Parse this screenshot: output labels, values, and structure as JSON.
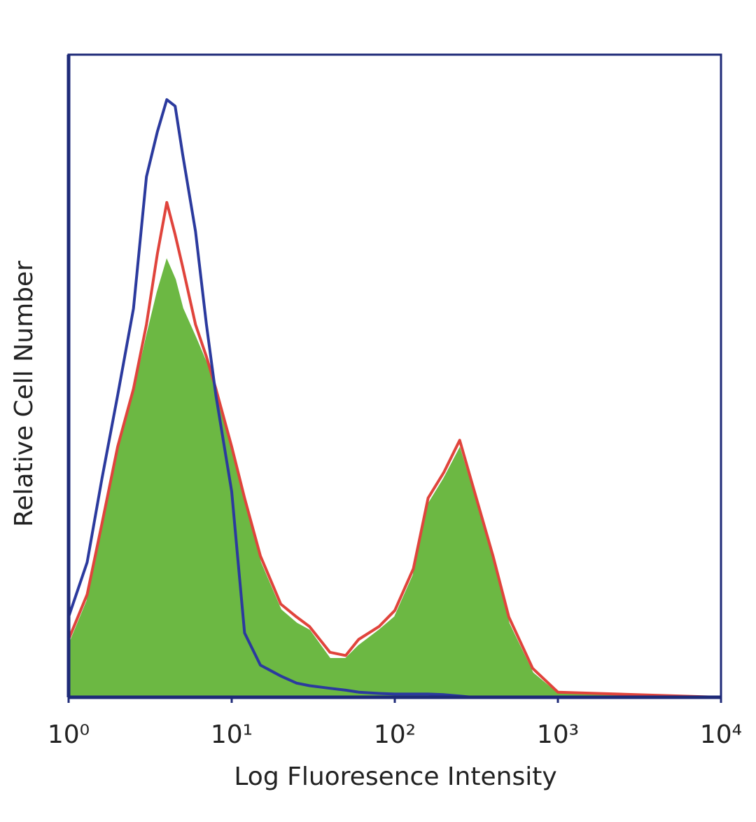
{
  "chart_data": {
    "type": "histogram-overlay",
    "xlabel": "Log Fluoresence Intensity",
    "ylabel": "Relative Cell Number",
    "xscale": "log",
    "xlim": [
      1,
      10000
    ],
    "ylim": [
      0,
      100
    ],
    "xticks": [
      {
        "value": 1,
        "label": "10⁰"
      },
      {
        "value": 10,
        "label": "10¹"
      },
      {
        "value": 100,
        "label": "10²"
      },
      {
        "value": 1000,
        "label": "10³"
      },
      {
        "value": 10000,
        "label": "10⁴"
      }
    ],
    "x": [
      1,
      1.3,
      1.6,
      2,
      2.5,
      3,
      3.5,
      4,
      4.5,
      5,
      6,
      7,
      8,
      10,
      12,
      15,
      20,
      25,
      30,
      40,
      50,
      60,
      80,
      100,
      130,
      160,
      200,
      250,
      300,
      400,
      500,
      700,
      1000,
      10000
    ],
    "series": [
      {
        "style": "fill",
        "color": "#6cb843",
        "values": [
          8,
          15,
          26,
          38,
          47,
          56,
          63,
          68,
          65,
          60.5,
          56,
          52,
          47,
          38,
          30,
          21,
          13.6,
          11.5,
          10.4,
          6,
          6,
          8,
          10.4,
          12.5,
          19,
          30,
          34,
          38.7,
          32,
          21,
          11.5,
          3.8,
          0.5,
          0
        ]
      },
      {
        "style": "line",
        "color": "#e0443c",
        "values": [
          9,
          16,
          27,
          39,
          48,
          58,
          69,
          77,
          72,
          67,
          58,
          53,
          48,
          39,
          31,
          22,
          14.5,
          12.5,
          11,
          7,
          6.5,
          9,
          11,
          13.5,
          20,
          31,
          35,
          40,
          33,
          22,
          12.5,
          4.5,
          0.8,
          0
        ]
      },
      {
        "style": "line",
        "color": "#2b3a9e",
        "values": [
          12.5,
          21,
          34,
          47,
          60.5,
          81,
          88,
          93,
          92,
          84.5,
          72.5,
          58,
          47,
          32,
          10,
          5,
          3.3,
          2.2,
          1.8,
          1.4,
          1.1,
          0.8,
          0.6,
          0.5,
          0.5,
          0.5,
          0.4,
          0.2,
          0,
          0,
          0,
          0,
          0,
          0
        ]
      }
    ],
    "frame_color": "#1e2a78"
  }
}
